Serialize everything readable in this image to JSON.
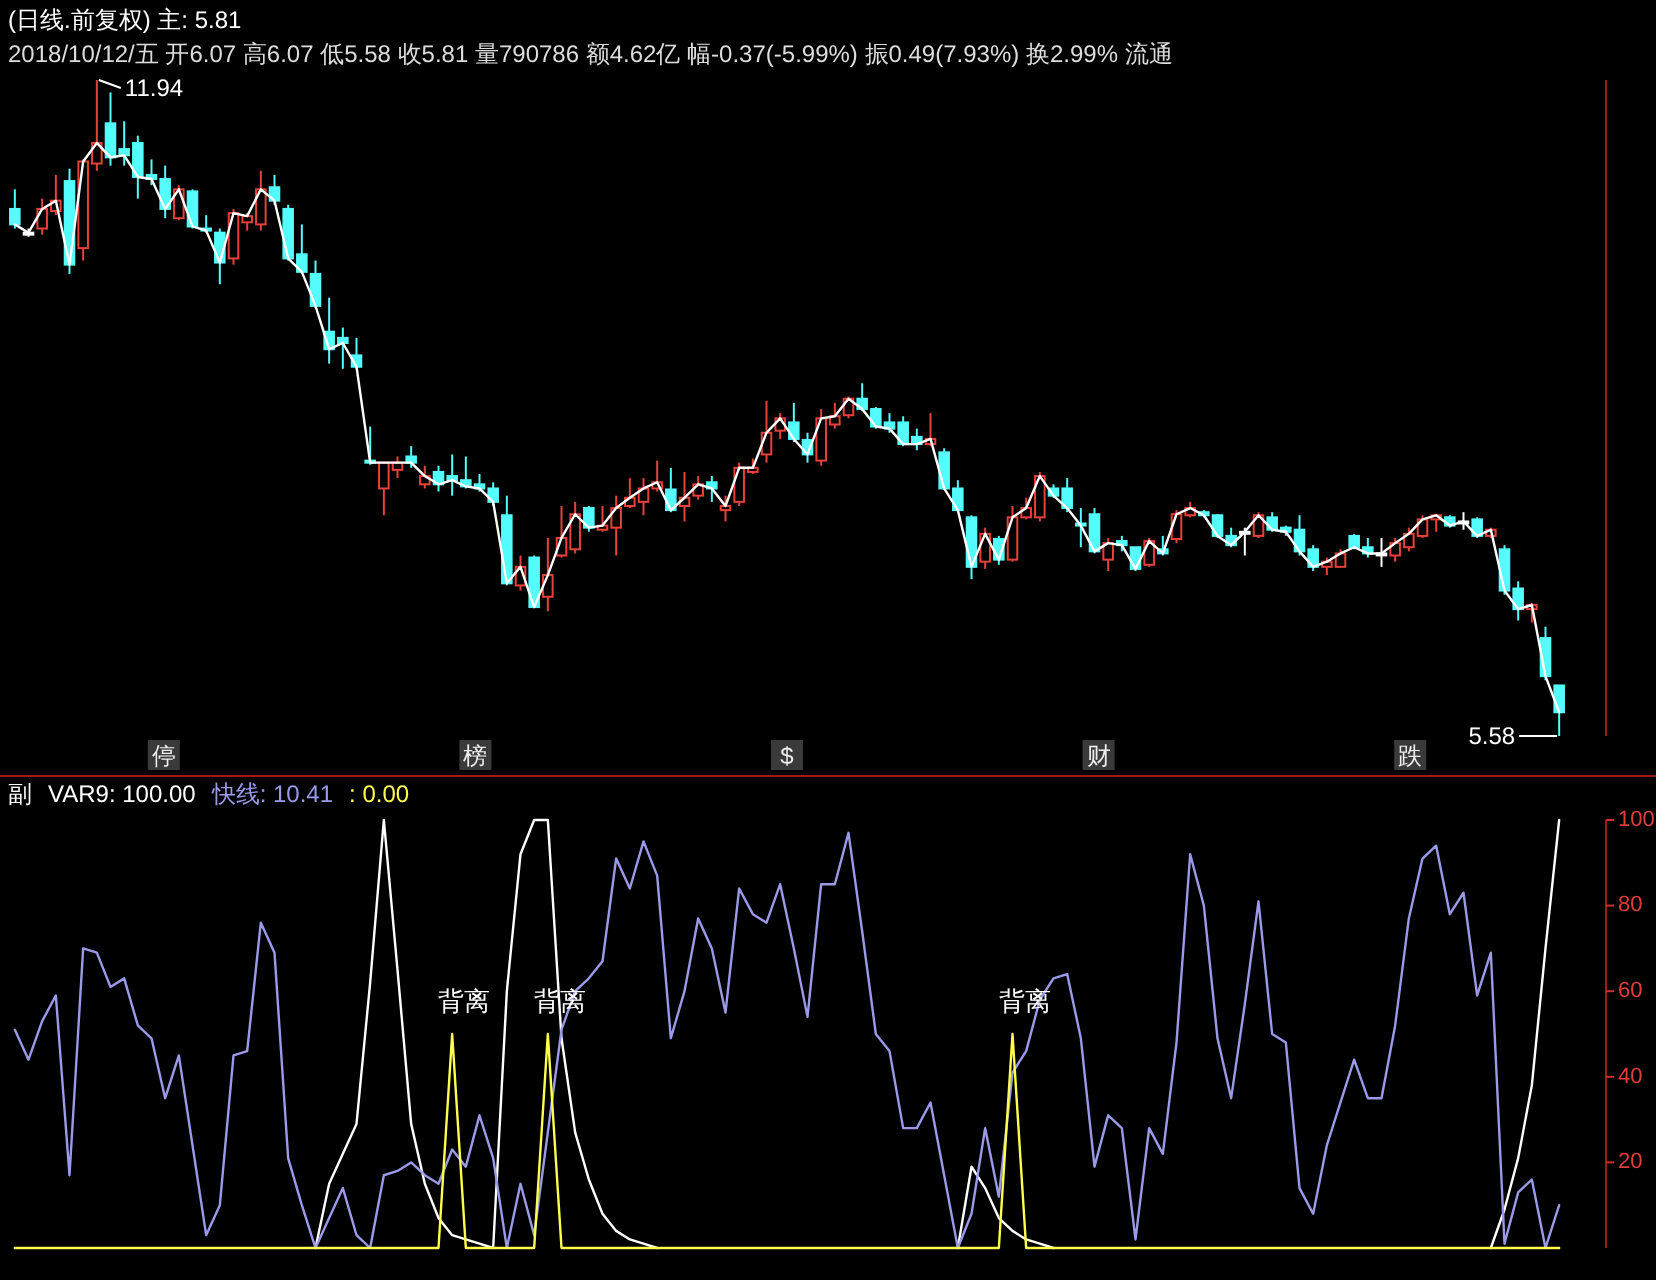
{
  "chart_data": [
    {
      "type": "candlestick",
      "title": "(日线.前复权)  主: 5.81",
      "subtitle": "2018/10/12/五 开6.07 高6.07 低5.58 收5.81 量790786 额4.62亿 幅-0.37(-5.99%) 振0.49(7.93%) 换2.99% 流通",
      "categories": [
        null,
        null,
        null,
        null,
        null,
        null,
        null,
        null,
        null,
        null,
        null,
        null,
        null,
        null,
        null,
        null,
        null,
        null,
        null,
        null,
        null,
        null,
        null,
        null,
        null,
        null,
        null,
        null,
        null,
        null,
        null,
        null,
        null,
        null,
        null,
        null,
        null,
        null,
        null,
        null,
        null,
        null,
        null,
        null,
        null,
        null,
        null,
        null,
        null,
        null,
        null,
        null,
        null,
        null,
        null,
        null,
        null,
        null,
        null,
        null,
        null,
        null,
        null,
        null,
        null,
        null,
        null,
        null,
        null,
        null,
        null,
        null,
        null,
        null,
        null,
        null,
        null,
        null,
        null,
        null,
        null,
        null,
        null,
        null,
        null,
        null,
        null,
        null,
        null,
        null,
        null,
        null,
        null,
        null,
        null,
        null,
        null,
        null,
        null,
        null,
        null,
        null,
        null,
        null,
        null,
        null,
        null,
        null,
        null,
        null,
        null,
        null,
        null,
        null
      ],
      "annotations": [
        "停",
        "榜",
        "$",
        "财",
        "跌"
      ],
      "series": [
        {
          "type": "line",
          "color": "#ffffff",
          "values": [
            10.54,
            10.46,
            10.69,
            10.77,
            10.15,
            11.15,
            11.33,
            11.19,
            11.21,
            11.0,
            10.98,
            10.69,
            10.88,
            10.52,
            10.48,
            10.17,
            10.65,
            10.62,
            10.88,
            10.77,
            10.21,
            10.08,
            9.75,
            9.33,
            9.39,
            9.16,
            8.23,
            8.23,
            8.23,
            8.23,
            8.1,
            8.02,
            8.06,
            8.0,
            7.98,
            7.85,
            7.06,
            7.22,
            6.83,
            7.14,
            7.5,
            7.73,
            7.6,
            7.62,
            7.79,
            7.89,
            7.98,
            8.04,
            7.77,
            7.89,
            8.02,
            7.98,
            7.81,
            8.18,
            8.18,
            8.52,
            8.66,
            8.46,
            8.31,
            8.66,
            8.68,
            8.85,
            8.75,
            8.58,
            8.56,
            8.41,
            8.41,
            8.46,
            7.98,
            7.77,
            7.22,
            7.54,
            7.29,
            7.7,
            7.79,
            8.1,
            7.91,
            7.79,
            7.62,
            7.37,
            7.45,
            7.43,
            7.2,
            7.47,
            7.35,
            7.73,
            7.79,
            7.72,
            7.52,
            7.43,
            7.56,
            7.72,
            7.58,
            7.56,
            7.37,
            7.22,
            7.27,
            7.35,
            7.41,
            7.35,
            7.35,
            7.45,
            7.54,
            7.68,
            7.72,
            7.62,
            7.66,
            7.52,
            7.58,
            6.99,
            6.81,
            6.85,
            6.16,
            5.81
          ]
        },
        {
          "type": "candlestick",
          "ohlc": [
            [
              10.69,
              10.88,
              10.5,
              10.54
            ],
            [
              10.46,
              10.5,
              10.42,
              10.46
            ],
            [
              10.5,
              10.79,
              10.44,
              10.69
            ],
            [
              10.67,
              11.02,
              10.63,
              10.77
            ],
            [
              10.96,
              11.08,
              10.06,
              10.15
            ],
            [
              10.31,
              11.17,
              10.19,
              11.15
            ],
            [
              11.13,
              11.94,
              11.06,
              11.33
            ],
            [
              11.52,
              11.82,
              11.11,
              11.19
            ],
            [
              11.27,
              11.54,
              11.11,
              11.21
            ],
            [
              11.33,
              11.4,
              10.79,
              11.0
            ],
            [
              11.02,
              11.17,
              10.92,
              10.98
            ],
            [
              10.98,
              11.11,
              10.6,
              10.69
            ],
            [
              10.6,
              10.92,
              10.58,
              10.88
            ],
            [
              10.86,
              10.88,
              10.5,
              10.52
            ],
            [
              10.5,
              10.63,
              10.46,
              10.48
            ],
            [
              10.46,
              10.5,
              9.96,
              10.17
            ],
            [
              10.21,
              10.69,
              10.15,
              10.65
            ],
            [
              10.56,
              10.65,
              10.48,
              10.62
            ],
            [
              10.54,
              11.06,
              10.48,
              10.88
            ],
            [
              10.9,
              11.02,
              10.73,
              10.77
            ],
            [
              10.69,
              10.73,
              10.19,
              10.21
            ],
            [
              10.25,
              10.54,
              10.06,
              10.08
            ],
            [
              10.06,
              10.19,
              9.73,
              9.75
            ],
            [
              9.5,
              9.83,
              9.19,
              9.33
            ],
            [
              9.44,
              9.54,
              9.14,
              9.39
            ],
            [
              9.27,
              9.44,
              9.14,
              9.16
            ],
            [
              8.25,
              8.58,
              8.21,
              8.23
            ],
            [
              7.98,
              8.23,
              7.72,
              8.23
            ],
            [
              8.16,
              8.29,
              8.08,
              8.23
            ],
            [
              8.29,
              8.39,
              8.18,
              8.23
            ],
            [
              8.02,
              8.2,
              7.98,
              8.1
            ],
            [
              8.14,
              8.2,
              7.95,
              8.02
            ],
            [
              8.1,
              8.31,
              7.91,
              8.06
            ],
            [
              8.06,
              8.29,
              7.98,
              8.0
            ],
            [
              8.02,
              8.12,
              7.95,
              7.98
            ],
            [
              7.98,
              8.04,
              7.81,
              7.85
            ],
            [
              7.72,
              7.91,
              7.04,
              7.06
            ],
            [
              7.04,
              7.33,
              6.99,
              7.22
            ],
            [
              7.31,
              7.33,
              6.83,
              6.83
            ],
            [
              6.93,
              7.5,
              6.79,
              7.14
            ],
            [
              7.33,
              7.81,
              7.31,
              7.5
            ],
            [
              7.39,
              7.85,
              7.35,
              7.73
            ],
            [
              7.79,
              7.81,
              7.56,
              7.6
            ],
            [
              7.58,
              7.81,
              7.56,
              7.62
            ],
            [
              7.6,
              7.91,
              7.33,
              7.79
            ],
            [
              7.81,
              8.08,
              7.79,
              7.89
            ],
            [
              7.85,
              8.08,
              7.72,
              7.98
            ],
            [
              7.98,
              8.25,
              7.95,
              8.04
            ],
            [
              7.97,
              8.18,
              7.75,
              7.77
            ],
            [
              7.81,
              8.14,
              7.66,
              7.89
            ],
            [
              7.91,
              8.1,
              7.87,
              8.02
            ],
            [
              8.04,
              8.1,
              7.85,
              7.98
            ],
            [
              7.77,
              7.91,
              7.66,
              7.81
            ],
            [
              7.85,
              8.23,
              7.81,
              8.18
            ],
            [
              8.14,
              8.27,
              8.12,
              8.18
            ],
            [
              8.31,
              8.83,
              8.23,
              8.52
            ],
            [
              8.54,
              8.71,
              8.46,
              8.66
            ],
            [
              8.62,
              8.81,
              8.43,
              8.46
            ],
            [
              8.45,
              8.52,
              8.23,
              8.31
            ],
            [
              8.25,
              8.75,
              8.2,
              8.66
            ],
            [
              8.6,
              8.81,
              8.56,
              8.68
            ],
            [
              8.69,
              8.87,
              8.66,
              8.85
            ],
            [
              8.85,
              9.0,
              8.73,
              8.75
            ],
            [
              8.75,
              8.77,
              8.56,
              8.58
            ],
            [
              8.62,
              8.71,
              8.52,
              8.56
            ],
            [
              8.62,
              8.68,
              8.39,
              8.41
            ],
            [
              8.48,
              8.56,
              8.35,
              8.41
            ],
            [
              8.41,
              8.71,
              8.39,
              8.46
            ],
            [
              8.33,
              8.37,
              7.97,
              7.98
            ],
            [
              7.98,
              8.06,
              7.75,
              7.77
            ],
            [
              7.7,
              7.72,
              7.1,
              7.22
            ],
            [
              7.27,
              7.6,
              7.2,
              7.54
            ],
            [
              7.49,
              7.52,
              7.24,
              7.29
            ],
            [
              7.29,
              7.81,
              7.27,
              7.7
            ],
            [
              7.7,
              7.89,
              7.68,
              7.79
            ],
            [
              7.7,
              8.14,
              7.66,
              8.1
            ],
            [
              7.98,
              8.02,
              7.89,
              7.91
            ],
            [
              7.98,
              8.08,
              7.75,
              7.79
            ],
            [
              7.64,
              7.79,
              7.41,
              7.62
            ],
            [
              7.73,
              7.79,
              7.35,
              7.37
            ],
            [
              7.29,
              7.5,
              7.18,
              7.45
            ],
            [
              7.47,
              7.52,
              7.37,
              7.43
            ],
            [
              7.41,
              7.41,
              7.18,
              7.2
            ],
            [
              7.24,
              7.5,
              7.22,
              7.47
            ],
            [
              7.39,
              7.52,
              7.33,
              7.35
            ],
            [
              7.49,
              7.77,
              7.45,
              7.73
            ],
            [
              7.72,
              7.85,
              7.7,
              7.79
            ],
            [
              7.75,
              7.77,
              7.7,
              7.72
            ],
            [
              7.72,
              7.73,
              7.5,
              7.52
            ],
            [
              7.52,
              7.6,
              7.41,
              7.43
            ],
            [
              7.56,
              7.6,
              7.33,
              7.56
            ],
            [
              7.52,
              7.75,
              7.5,
              7.72
            ],
            [
              7.7,
              7.75,
              7.56,
              7.58
            ],
            [
              7.6,
              7.62,
              7.52,
              7.56
            ],
            [
              7.58,
              7.72,
              7.33,
              7.37
            ],
            [
              7.39,
              7.43,
              7.18,
              7.22
            ],
            [
              7.22,
              7.31,
              7.14,
              7.27
            ],
            [
              7.22,
              7.39,
              7.22,
              7.35
            ],
            [
              7.52,
              7.54,
              7.39,
              7.41
            ],
            [
              7.41,
              7.5,
              7.31,
              7.35
            ],
            [
              7.35,
              7.5,
              7.22,
              7.35
            ],
            [
              7.33,
              7.5,
              7.27,
              7.45
            ],
            [
              7.41,
              7.6,
              7.37,
              7.54
            ],
            [
              7.52,
              7.72,
              7.5,
              7.68
            ],
            [
              7.68,
              7.73,
              7.56,
              7.72
            ],
            [
              7.7,
              7.72,
              7.6,
              7.62
            ],
            [
              7.66,
              7.75,
              7.58,
              7.66
            ],
            [
              7.68,
              7.7,
              7.5,
              7.52
            ],
            [
              7.52,
              7.6,
              7.5,
              7.58
            ],
            [
              7.39,
              7.43,
              6.95,
              6.99
            ],
            [
              7.01,
              7.08,
              6.7,
              6.81
            ],
            [
              6.81,
              6.87,
              6.68,
              6.85
            ],
            [
              6.53,
              6.64,
              6.12,
              6.16
            ],
            [
              6.07,
              6.07,
              5.58,
              5.81
            ]
          ],
          "colors": [
            "#54fcfc",
            "#ffffff",
            "#e8403a",
            "#e8403a",
            "#54fcfc",
            "#e8403a",
            "#e8403a",
            "#54fcfc",
            "#54fcfc",
            "#54fcfc",
            "#54fcfc",
            "#54fcfc",
            "#e8403a",
            "#54fcfc",
            "#54fcfc",
            "#54fcfc",
            "#e8403a",
            "#e8403a",
            "#e8403a",
            "#54fcfc",
            "#54fcfc",
            "#54fcfc",
            "#54fcfc",
            "#54fcfc",
            "#54fcfc",
            "#54fcfc",
            "#54fcfc",
            "#e8403a",
            "#e8403a",
            "#54fcfc",
            "#e8403a",
            "#54fcfc",
            "#54fcfc",
            "#54fcfc",
            "#54fcfc",
            "#54fcfc",
            "#54fcfc",
            "#e8403a",
            "#54fcfc",
            "#e8403a",
            "#e8403a",
            "#e8403a",
            "#54fcfc",
            "#e8403a",
            "#e8403a",
            "#e8403a",
            "#e8403a",
            "#e8403a",
            "#54fcfc",
            "#e8403a",
            "#e8403a",
            "#54fcfc",
            "#e8403a",
            "#e8403a",
            "#e8403a",
            "#e8403a",
            "#e8403a",
            "#54fcfc",
            "#54fcfc",
            "#e8403a",
            "#e8403a",
            "#e8403a",
            "#54fcfc",
            "#54fcfc",
            "#54fcfc",
            "#54fcfc",
            "#54fcfc",
            "#e8403a",
            "#54fcfc",
            "#54fcfc",
            "#54fcfc",
            "#e8403a",
            "#54fcfc",
            "#e8403a",
            "#e8403a",
            "#e8403a",
            "#54fcfc",
            "#54fcfc",
            "#54fcfc",
            "#54fcfc",
            "#e8403a",
            "#54fcfc",
            "#54fcfc",
            "#e8403a",
            "#54fcfc",
            "#e8403a",
            "#e8403a",
            "#54fcfc",
            "#54fcfc",
            "#54fcfc",
            "#ffffff",
            "#e8403a",
            "#54fcfc",
            "#54fcfc",
            "#54fcfc",
            "#54fcfc",
            "#e8403a",
            "#e8403a",
            "#54fcfc",
            "#54fcfc",
            "#ffffff",
            "#e8403a",
            "#e8403a",
            "#e8403a",
            "#e8403a",
            "#54fcfc",
            "#ffffff",
            "#54fcfc",
            "#e8403a",
            "#54fcfc",
            "#54fcfc",
            "#e8403a",
            "#54fcfc",
            "#54fcfc"
          ],
          "value_labels": [
            null,
            null,
            null,
            null,
            null,
            null,
            "11.94",
            null,
            null,
            null,
            null,
            null,
            null,
            null,
            null,
            null,
            null,
            null,
            null,
            null,
            null,
            null,
            null,
            null,
            null,
            null,
            null,
            null,
            null,
            null,
            null,
            null,
            null,
            null,
            null,
            null,
            null,
            null,
            null,
            null,
            null,
            null,
            null,
            null,
            null,
            null,
            null,
            null,
            null,
            null,
            null,
            null,
            null,
            null,
            null,
            null,
            null,
            null,
            null,
            null,
            null,
            null,
            null,
            null,
            null,
            null,
            null,
            null,
            null,
            null,
            null,
            null,
            null,
            null,
            null,
            null,
            null,
            null,
            null,
            null,
            null,
            null,
            null,
            null,
            null,
            null,
            null,
            null,
            null,
            null,
            null,
            null,
            null,
            null,
            null,
            null,
            null,
            null,
            null,
            null,
            null,
            null,
            null,
            null,
            null,
            null,
            null,
            null,
            null,
            null,
            null,
            null,
            null,
            "5.58"
          ]
        }
      ]
    },
    {
      "type": "line",
      "title": "副",
      "ylim": [
        0,
        100
      ],
      "yticks": [
        20,
        40,
        60,
        80,
        100
      ],
      "categories": [
        null,
        null,
        null,
        null,
        null,
        null,
        null,
        null,
        null,
        null,
        null,
        null,
        null,
        null,
        null,
        null,
        null,
        null,
        null,
        null,
        null,
        null,
        null,
        null,
        null,
        null,
        null,
        null,
        null,
        null,
        null,
        null,
        null,
        null,
        null,
        null,
        null,
        null,
        null,
        null,
        null,
        null,
        null,
        null,
        null,
        null,
        null,
        null,
        null,
        null,
        null,
        null,
        null,
        null,
        null,
        null,
        null,
        null,
        null,
        null,
        null,
        null,
        null,
        null,
        null,
        null,
        null,
        null,
        null,
        null,
        null,
        null,
        null,
        null,
        null,
        null,
        null,
        null,
        null,
        null,
        null,
        null,
        null,
        null,
        null,
        null,
        null,
        null,
        null,
        null,
        null,
        null,
        null,
        null,
        null,
        null,
        null,
        null,
        null,
        null,
        null,
        null,
        null,
        null,
        null,
        null,
        null,
        null,
        null,
        null,
        null,
        null,
        null,
        null
      ],
      "series": [
        {
          "name": "VAR9: 100.00",
          "color": "#ffffff",
          "values": [
            null,
            null,
            null,
            null,
            null,
            null,
            null,
            null,
            null,
            null,
            null,
            null,
            null,
            null,
            null,
            null,
            null,
            null,
            null,
            null,
            null,
            null,
            0,
            15,
            22,
            29,
            62,
            100,
            65,
            29,
            15,
            7,
            3,
            2,
            1,
            0,
            60,
            92,
            100,
            100,
            49,
            27,
            16,
            8,
            4,
            2,
            1,
            0,
            null,
            null,
            null,
            null,
            null,
            null,
            null,
            null,
            null,
            null,
            null,
            null,
            null,
            null,
            null,
            null,
            null,
            null,
            null,
            null,
            null,
            0,
            19,
            14,
            7,
            4,
            2,
            1,
            0,
            null,
            null,
            null,
            null,
            null,
            null,
            null,
            null,
            null,
            null,
            null,
            null,
            null,
            null,
            null,
            null,
            null,
            null,
            null,
            null,
            null,
            null,
            null,
            null,
            null,
            null,
            null,
            null,
            null,
            null,
            null,
            0,
            9,
            21,
            38,
            70,
            100
          ]
        },
        {
          "name": "快线: 10.41",
          "color": "#9a9ae8",
          "values": [
            51,
            44,
            53,
            59,
            17,
            70,
            69,
            61,
            63,
            52,
            49,
            35,
            45,
            24,
            3,
            10,
            45,
            46,
            76,
            69,
            21,
            10,
            0,
            7,
            14,
            3,
            0,
            17,
            18,
            20,
            17,
            15,
            23,
            19,
            31,
            21,
            0,
            15,
            3,
            27,
            51,
            60,
            63,
            67,
            91,
            84,
            95,
            87,
            49,
            60,
            77,
            70,
            55,
            84,
            78,
            76,
            85,
            70,
            54,
            85,
            85,
            97,
            74,
            50,
            46,
            28,
            28,
            34,
            17,
            0,
            8,
            28,
            12,
            41,
            46,
            58,
            63,
            64,
            49,
            19,
            31,
            28,
            2,
            28,
            22,
            48,
            92,
            80,
            49,
            35,
            57,
            81,
            50,
            48,
            14,
            8,
            24,
            34,
            44,
            35,
            35,
            52,
            77,
            91,
            94,
            78,
            83,
            59,
            69,
            1,
            13,
            16,
            0,
            10
          ]
        },
        {
          "name": ": 0.00",
          "color": "#ffff4d",
          "values": [
            0,
            0,
            0,
            0,
            0,
            0,
            0,
            0,
            0,
            0,
            0,
            0,
            0,
            0,
            0,
            0,
            0,
            0,
            0,
            0,
            0,
            0,
            0,
            0,
            0,
            0,
            0,
            0,
            0,
            0,
            0,
            0,
            50,
            0,
            0,
            0,
            0,
            0,
            0,
            50,
            0,
            0,
            0,
            0,
            0,
            0,
            0,
            0,
            0,
            0,
            0,
            0,
            0,
            0,
            0,
            0,
            0,
            0,
            0,
            0,
            0,
            0,
            0,
            0,
            0,
            0,
            0,
            0,
            0,
            0,
            0,
            0,
            0,
            50,
            0,
            0,
            0,
            0,
            0,
            0,
            0,
            0,
            0,
            0,
            0,
            0,
            0,
            0,
            0,
            0,
            0,
            0,
            0,
            0,
            0,
            0,
            0,
            0,
            0,
            0,
            0,
            0,
            0,
            0,
            0,
            0,
            0,
            0,
            0,
            0,
            0,
            0,
            0,
            0
          ],
          "value_labels": [
            null,
            null,
            null,
            null,
            null,
            null,
            null,
            null,
            null,
            null,
            null,
            null,
            null,
            null,
            null,
            null,
            null,
            null,
            null,
            null,
            null,
            null,
            null,
            null,
            null,
            null,
            null,
            null,
            null,
            null,
            null,
            null,
            "背离",
            null,
            null,
            null,
            null,
            null,
            null,
            "背离",
            null,
            null,
            null,
            null,
            null,
            null,
            null,
            null,
            null,
            null,
            null,
            null,
            null,
            null,
            null,
            null,
            null,
            null,
            null,
            null,
            null,
            null,
            null,
            null,
            null,
            null,
            null,
            null,
            null,
            null,
            null,
            null,
            null,
            "背离",
            null,
            null,
            null,
            null,
            null,
            null,
            null,
            null,
            null,
            null,
            null,
            null,
            null,
            null,
            null,
            null,
            null,
            null,
            null,
            null,
            null,
            null,
            null,
            null,
            null,
            null,
            null,
            null,
            null,
            null,
            null,
            null,
            null,
            null,
            null,
            null,
            null,
            null,
            null,
            null
          ]
        }
      ]
    }
  ]
}
